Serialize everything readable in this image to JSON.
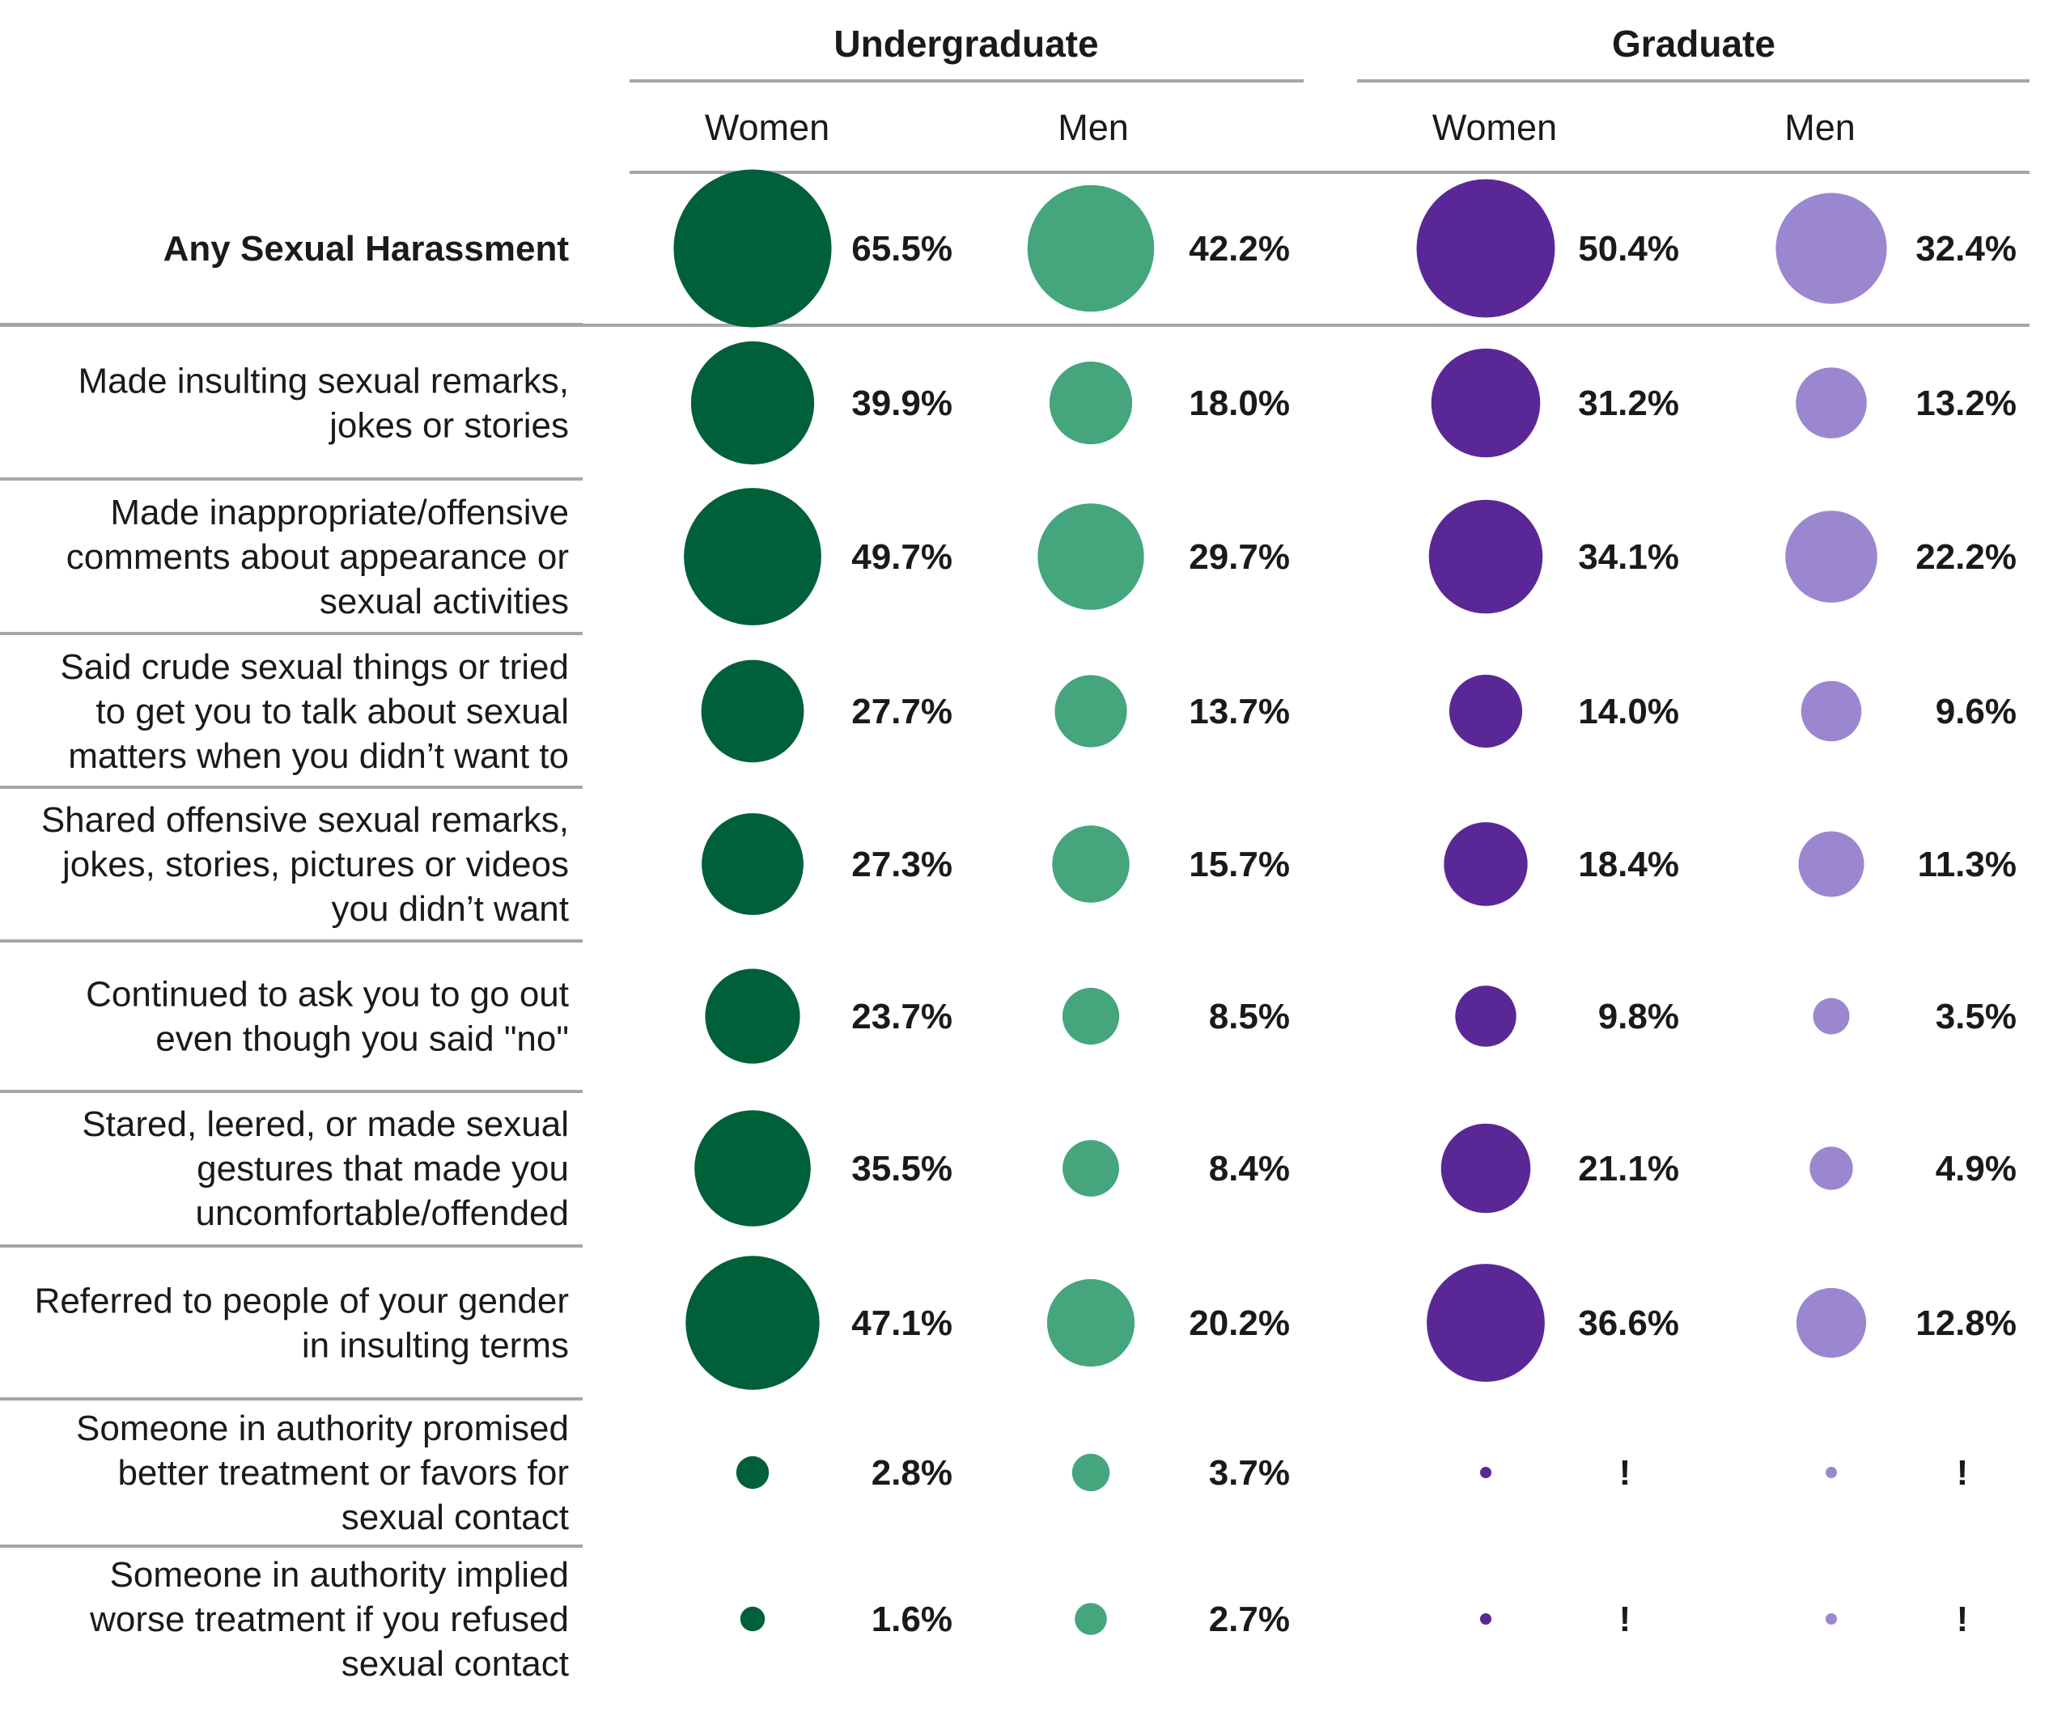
{
  "chart_data": {
    "type": "bubble-table",
    "groups": [
      {
        "label": "Undergraduate",
        "columns": [
          "Women",
          "Men"
        ]
      },
      {
        "label": "Graduate",
        "columns": [
          "Women",
          "Men"
        ]
      }
    ],
    "series": [
      {
        "name": "Undergraduate Women",
        "color": "#00603a"
      },
      {
        "name": "Undergraduate Men",
        "color": "#45a57c"
      },
      {
        "name": "Graduate Women",
        "color": "#5a2896"
      },
      {
        "name": "Graduate Men",
        "color": "#9b87d0"
      }
    ],
    "rows": [
      {
        "label": [
          "Any Sexual Harassment"
        ],
        "bold": true,
        "values": [
          65.5,
          42.2,
          50.4,
          32.4
        ],
        "display": [
          "65.5%",
          "42.2%",
          "50.4%",
          "32.4%"
        ]
      },
      {
        "label": [
          "Made insulting sexual remarks,",
          "jokes or stories"
        ],
        "values": [
          39.9,
          18.0,
          31.2,
          13.2
        ],
        "display": [
          "39.9%",
          "18.0%",
          "31.2%",
          "13.2%"
        ]
      },
      {
        "label": [
          "Made inappropriate/offensive",
          "comments about appearance or",
          "sexual activities"
        ],
        "values": [
          49.7,
          29.7,
          34.1,
          22.2
        ],
        "display": [
          "49.7%",
          "29.7%",
          "34.1%",
          "22.2%"
        ]
      },
      {
        "label": [
          "Said crude sexual things or tried",
          "to get you to talk about sexual",
          "matters when you didn’t want to"
        ],
        "values": [
          27.7,
          13.7,
          14.0,
          9.6
        ],
        "display": [
          "27.7%",
          "13.7%",
          "14.0%",
          "9.6%"
        ]
      },
      {
        "label": [
          "Shared offensive sexual remarks,",
          "jokes, stories, pictures or videos",
          "you didn’t want"
        ],
        "values": [
          27.3,
          15.7,
          18.4,
          11.3
        ],
        "display": [
          "27.3%",
          "15.7%",
          "18.4%",
          "11.3%"
        ]
      },
      {
        "label": [
          "Continued to ask you to go out",
          "even though you said \"no\""
        ],
        "values": [
          23.7,
          8.5,
          9.8,
          3.5
        ],
        "display": [
          "23.7%",
          "8.5%",
          "9.8%",
          "3.5%"
        ]
      },
      {
        "label": [
          "Stared, leered, or made sexual",
          "gestures that made you",
          "uncomfortable/offended"
        ],
        "values": [
          35.5,
          8.4,
          21.1,
          4.9
        ],
        "display": [
          "35.5%",
          "8.4%",
          "21.1%",
          "4.9%"
        ]
      },
      {
        "label": [
          "Referred to people of your gender",
          "in insulting terms"
        ],
        "values": [
          47.1,
          20.2,
          36.6,
          12.8
        ],
        "display": [
          "47.1%",
          "20.2%",
          "36.6%",
          "12.8%"
        ]
      },
      {
        "label": [
          "Someone in authority promised",
          "better treatment or favors for",
          "sexual contact"
        ],
        "values": [
          2.8,
          3.7,
          null,
          null
        ],
        "display": [
          "2.8%",
          "3.7%",
          "!",
          "!"
        ]
      },
      {
        "label": [
          "Someone in authority implied",
          "worse treatment if you refused",
          "sexual contact"
        ],
        "values": [
          1.6,
          2.7,
          null,
          null
        ],
        "display": [
          "1.6%",
          "2.7%",
          "!",
          "!"
        ]
      }
    ]
  }
}
